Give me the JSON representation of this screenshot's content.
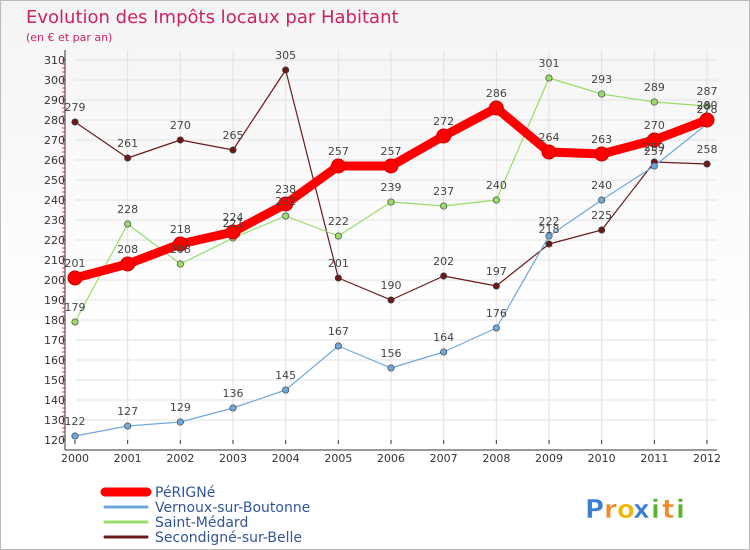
{
  "chart_data": {
    "type": "line",
    "title": "Evolution des Impôts locaux par Habitant",
    "subtitle": "(en € et par an)",
    "xlabel": "",
    "ylabel": "",
    "ylim": [
      120,
      310
    ],
    "y_ticks": [
      120,
      130,
      140,
      150,
      160,
      170,
      180,
      190,
      200,
      210,
      220,
      230,
      240,
      250,
      260,
      270,
      280,
      290,
      300,
      310
    ],
    "x": [
      "2000",
      "2001",
      "2002",
      "2003",
      "2004",
      "2005",
      "2006",
      "2007",
      "2008",
      "2009",
      "2010",
      "2011",
      "2012"
    ],
    "series": [
      {
        "name": "PéRIGNé",
        "color": "#ff0000",
        "values": [
          201,
          208,
          218,
          224,
          238,
          257,
          257,
          272,
          286,
          264,
          263,
          270,
          280
        ]
      },
      {
        "name": "Vernoux-sur-Boutonne",
        "color": "#6fa8dc",
        "values": [
          122,
          127,
          129,
          136,
          145,
          167,
          156,
          164,
          176,
          222,
          240,
          257,
          278
        ]
      },
      {
        "name": "Saint-Médard",
        "color": "#99dd66",
        "values": [
          179,
          228,
          208,
          221,
          232,
          222,
          239,
          237,
          240,
          301,
          293,
          289,
          287
        ]
      },
      {
        "name": "Secondigné-sur-Belle",
        "color": "#6b1a1a",
        "values": [
          279,
          261,
          270,
          265,
          305,
          201,
          190,
          202,
          197,
          218,
          225,
          259,
          258
        ]
      }
    ],
    "legend_position": "bottom-left"
  },
  "brand": {
    "letters": [
      "P",
      "r",
      "o",
      "x",
      "i",
      "t",
      "i"
    ],
    "colors": [
      "#3a7fd5",
      "#f28c28",
      "#f2b705",
      "#3a7fd5",
      "#59b32c",
      "#f28c28",
      "#59b32c"
    ]
  }
}
